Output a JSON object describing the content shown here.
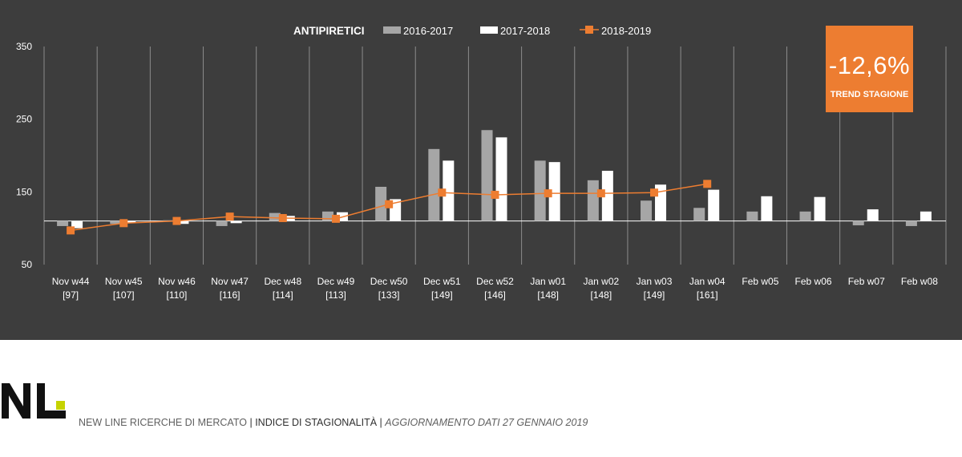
{
  "chart_data": {
    "type": "bar",
    "title": "ANTIPIRETICI",
    "categories": [
      "Nov w44",
      "Nov w45",
      "Nov w46",
      "Nov w47",
      "Dec w48",
      "Dec w49",
      "Dec w50",
      "Dec w51",
      "Dec w52",
      "Jan w01",
      "Jan w02",
      "Jan w03",
      "Jan w04",
      "Feb w05",
      "Feb w06",
      "Feb w07",
      "Feb w08"
    ],
    "category_sublabels": [
      "[97]",
      "[107]",
      "[110]",
      "[116]",
      "[114]",
      "[113]",
      "[133]",
      "[149]",
      "[146]",
      "[148]",
      "[148]",
      "[149]",
      "[161]",
      "",
      "",
      "",
      ""
    ],
    "series": [
      {
        "name": "2016-2017",
        "type": "bar",
        "color": "#a6a6a6",
        "values": [
          103,
          106,
          111,
          103,
          121,
          123,
          157,
          209,
          235,
          193,
          166,
          138,
          128,
          123,
          123,
          104,
          103
        ]
      },
      {
        "name": "2017-2018",
        "type": "bar",
        "color": "#ffffff",
        "values": [
          100,
          107,
          106,
          107,
          117,
          122,
          140,
          193,
          225,
          191,
          179,
          160,
          153,
          144,
          143,
          126,
          123
        ]
      },
      {
        "name": "2018-2019",
        "type": "line",
        "color": "#ed7d31",
        "values": [
          97,
          107,
          110,
          116,
          114,
          113,
          133,
          149,
          146,
          148,
          148,
          149,
          161,
          null,
          null,
          null,
          null
        ]
      }
    ],
    "baseline": 110,
    "yticks": [
      350,
      250,
      150,
      50
    ],
    "ylim": [
      50,
      350
    ],
    "xlabel": "",
    "ylabel": "",
    "grid": "vertical",
    "legend": "top-center"
  },
  "trend": {
    "value": "-12,6%",
    "label": "TREND STAGIONE",
    "color": "#ed7d31"
  },
  "footer": {
    "company": "NEW LINE RICERCHE DI MERCATO",
    "sep1": " | ",
    "index": "INDICE DI STAGIONALITÀ",
    "sep2": " | ",
    "update": "AGGIORNAMENTO DATI  27 GENNAIO 2019"
  }
}
